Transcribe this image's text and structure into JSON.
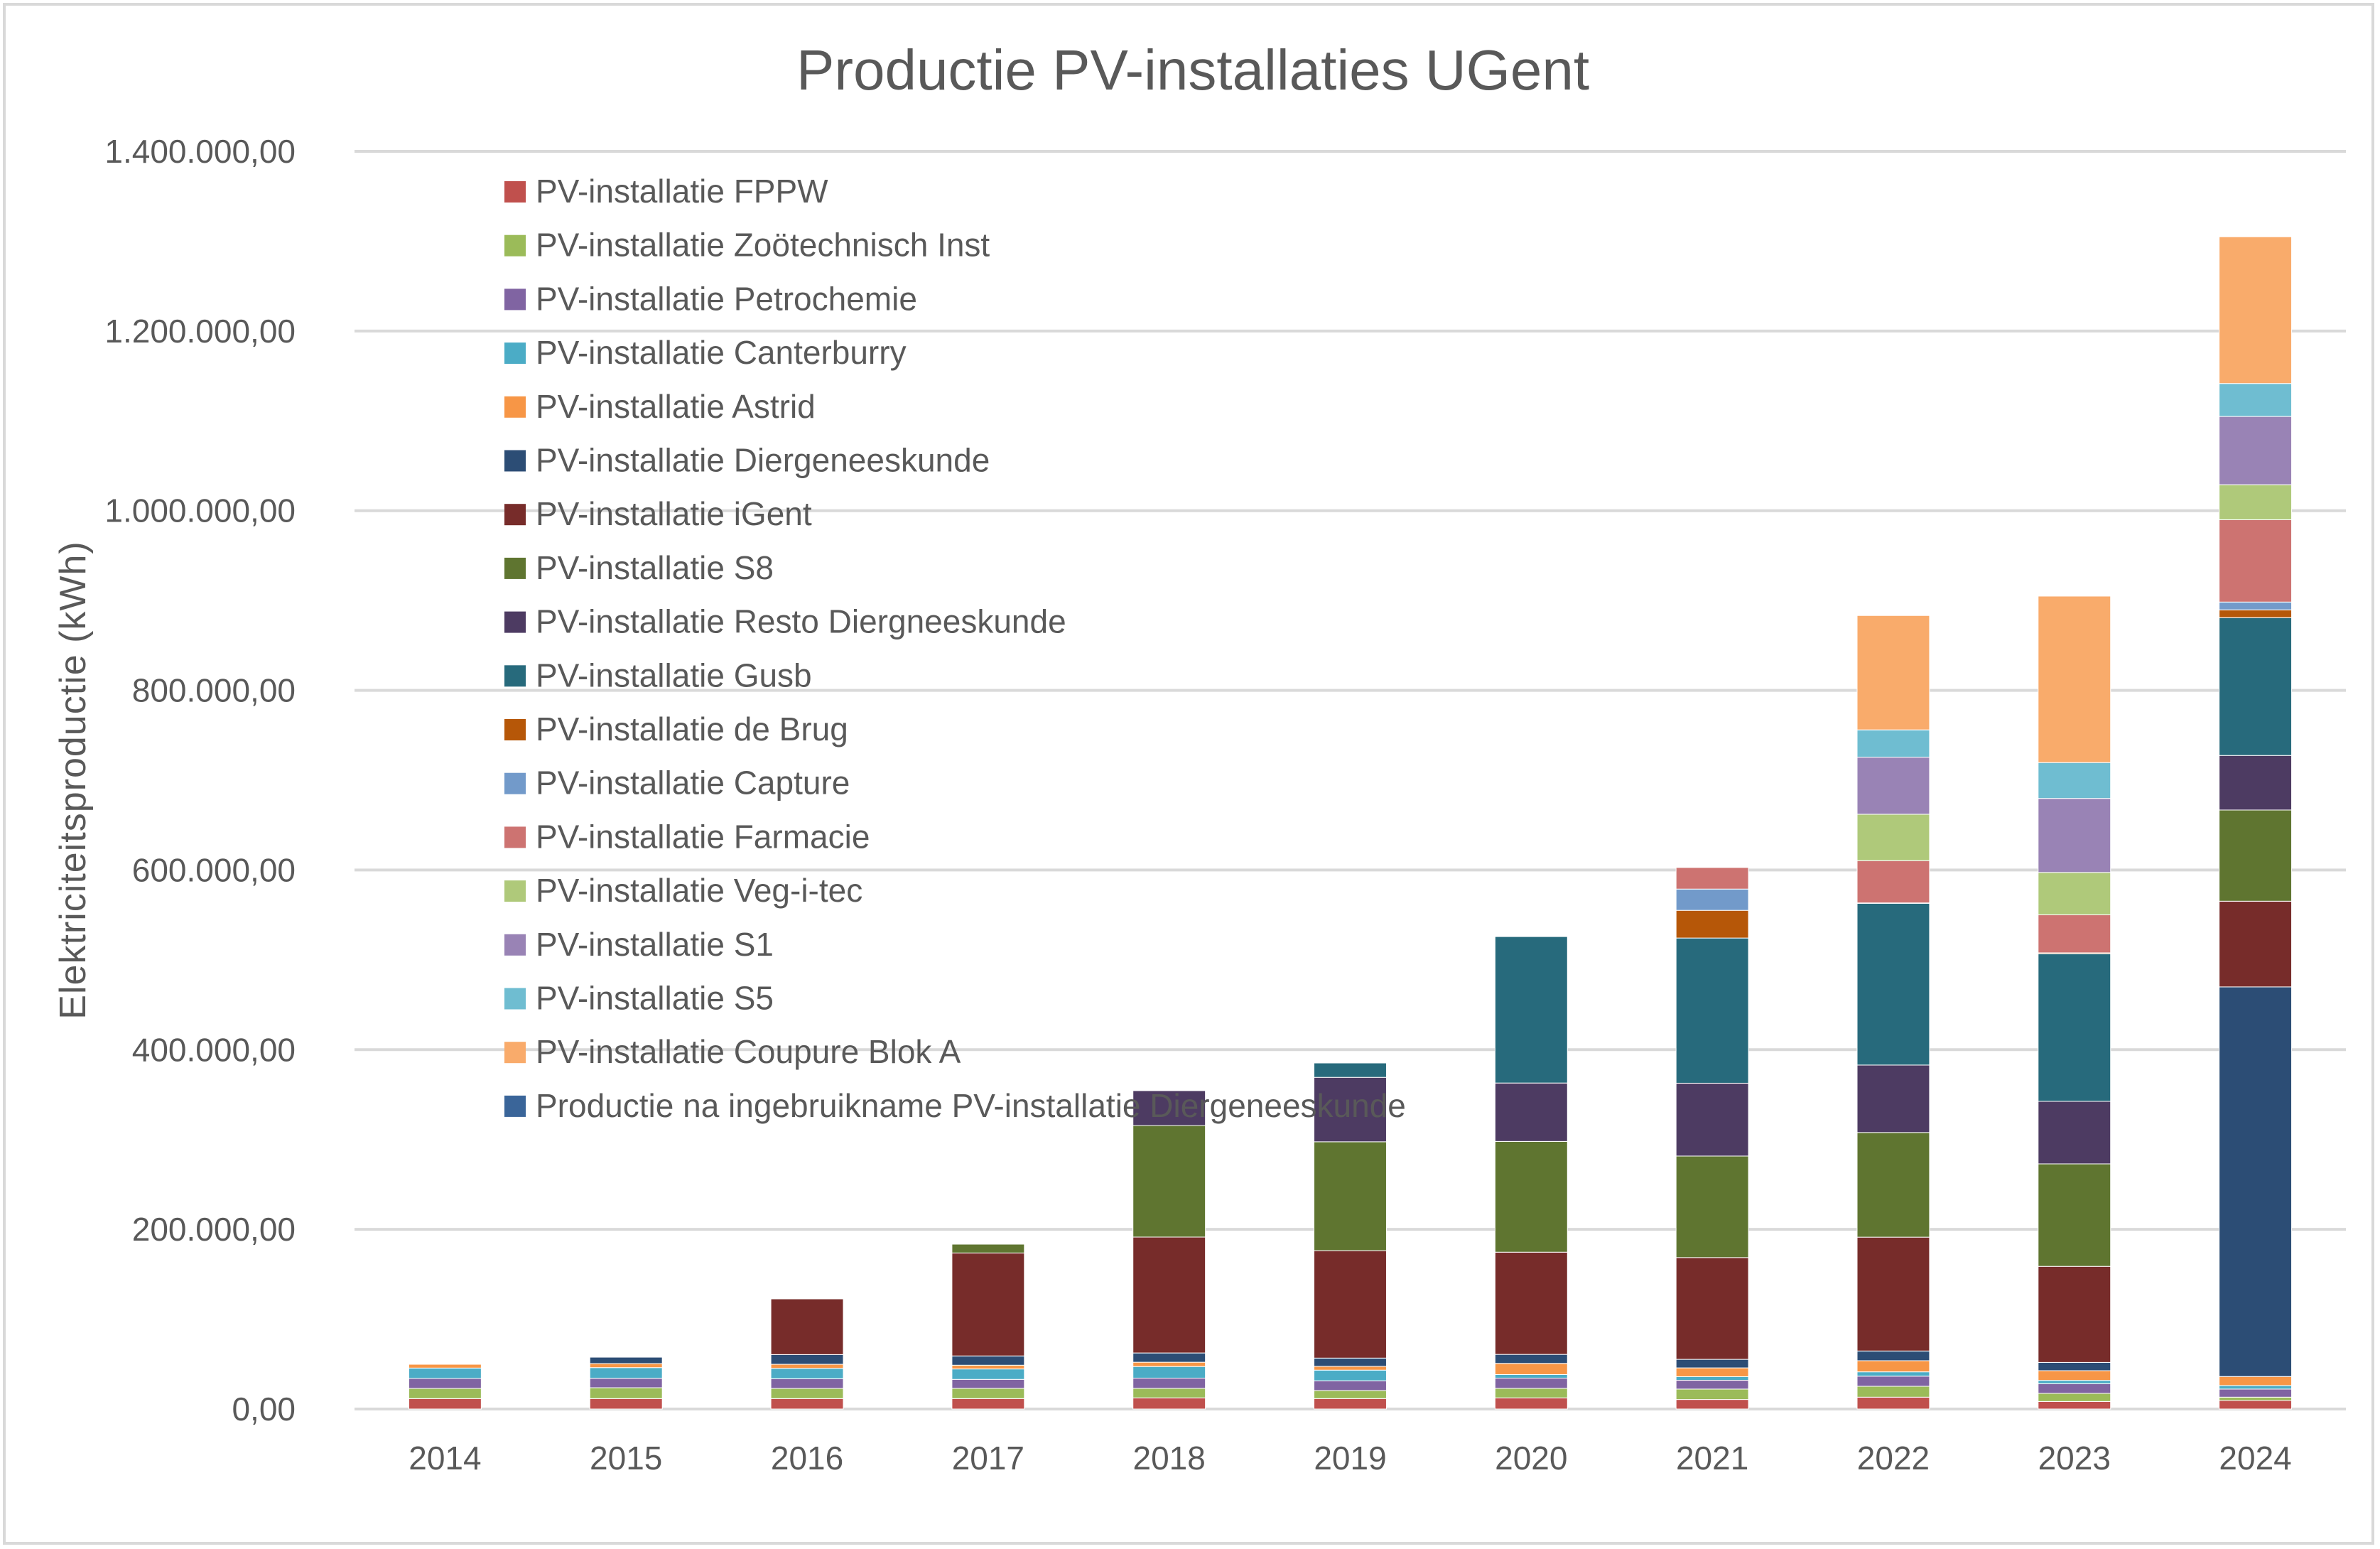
{
  "chart_data": {
    "type": "bar",
    "stacked": true,
    "title": "Productie PV-installaties UGent",
    "xlabel": "",
    "ylabel": "Elektriciteitsproductie (kWh)",
    "ylim": [
      0,
      1400000
    ],
    "yticks": [
      0,
      200000,
      400000,
      600000,
      800000,
      1000000,
      1200000,
      1400000
    ],
    "ytick_labels": [
      "0,00",
      "200.000,00",
      "400.000,00",
      "600.000,00",
      "800.000,00",
      "1.000.000,00",
      "1.200.000,00",
      "1.400.000,00"
    ],
    "grid": true,
    "legend_position": "top-left (inside plot)",
    "categories": [
      "2014",
      "2015",
      "2016",
      "2017",
      "2018",
      "2019",
      "2020",
      "2021",
      "2022",
      "2023",
      "2024"
    ],
    "series": [
      {
        "name": "PV-installatie FPPW",
        "color": "#C0504D",
        "values": [
          11600,
          11600,
          11600,
          11600,
          12400,
          11600,
          12400,
          10600,
          13200,
          8400,
          9500
        ]
      },
      {
        "name": "PV-installatie Zoötechnisch Inst",
        "color": "#9BBB59",
        "values": [
          11300,
          12100,
          11300,
          11400,
          10600,
          9000,
          10600,
          11600,
          12100,
          9000,
          3700
        ]
      },
      {
        "name": "PV-installatie Petrochemie",
        "color": "#8064A2",
        "values": [
          11100,
          10500,
          10800,
          10000,
          11400,
          10800,
          11400,
          9800,
          11300,
          10800,
          9000
        ]
      },
      {
        "name": "PV-installatie Canterburry",
        "color": "#4BACC6",
        "values": [
          11600,
          11900,
          11600,
          11600,
          12900,
          11900,
          4000,
          4000,
          4800,
          3700,
          4000
        ]
      },
      {
        "name": "PV-installatie Astrid",
        "color": "#F79646",
        "values": [
          4200,
          4500,
          4500,
          4200,
          4800,
          4200,
          12400,
          9800,
          12400,
          10800,
          10000
        ]
      },
      {
        "name": "PV-installatie Diergeneeskunde",
        "color": "#2C4D75",
        "values": [
          0,
          7100,
          10800,
          10300,
          10300,
          9200,
          10000,
          9500,
          10800,
          9200,
          433700
        ]
      },
      {
        "name": "PV-installatie iGent",
        "color": "#772C2A",
        "values": [
          0,
          0,
          62000,
          114600,
          129000,
          119600,
          113800,
          113300,
          126700,
          106900,
          95400
        ]
      },
      {
        "name": "PV-installatie S8",
        "color": "#5F7530",
        "values": [
          0,
          0,
          0,
          9800,
          124200,
          121200,
          123300,
          113000,
          116500,
          114100,
          101500
        ]
      },
      {
        "name": "PV-installatie Resto Diergneeskunde",
        "color": "#4D3B62",
        "values": [
          0,
          0,
          0,
          0,
          38800,
          71700,
          65000,
          81100,
          75100,
          69600,
          60700
        ]
      },
      {
        "name": "PV-installatie Gusb",
        "color": "#276A7C",
        "values": [
          0,
          0,
          0,
          0,
          0,
          16000,
          163000,
          161600,
          180000,
          164300,
          153400
        ]
      },
      {
        "name": "PV-installatie de Brug",
        "color": "#B65708",
        "values": [
          0,
          0,
          0,
          0,
          0,
          0,
          0,
          30800,
          500,
          1000,
          8700
        ]
      },
      {
        "name": "PV-installatie Capture",
        "color": "#729ACA",
        "values": [
          0,
          0,
          0,
          0,
          0,
          0,
          0,
          23700,
          0,
          0,
          8700
        ]
      },
      {
        "name": "PV-installatie  Farmacie",
        "color": "#CD7371",
        "values": [
          0,
          0,
          0,
          0,
          0,
          0,
          0,
          24000,
          47000,
          42300,
          91600
        ]
      },
      {
        "name": "PV-installatie Veg-i-tec",
        "color": "#AFC97A",
        "values": [
          0,
          0,
          0,
          0,
          0,
          0,
          0,
          0,
          51700,
          47200,
          39000
        ]
      },
      {
        "name": "PV-installatie S1",
        "color": "#9983B5",
        "values": [
          0,
          0,
          0,
          0,
          0,
          0,
          0,
          0,
          63500,
          82400,
          76000
        ]
      },
      {
        "name": "PV-installatie S5",
        "color": "#6FBDD1",
        "values": [
          0,
          0,
          0,
          0,
          0,
          0,
          0,
          0,
          30400,
          39900,
          36700
        ]
      },
      {
        "name": "PV-installatie Coupure Blok A",
        "color": "#F9AB6B",
        "values": [
          0,
          0,
          0,
          0,
          0,
          0,
          0,
          0,
          127300,
          185300,
          163300
        ]
      },
      {
        "name": "Productie na ingebruikname PV-installatie Diergeneeskunde",
        "color": "#3A6599",
        "values": [
          0,
          0,
          0,
          0,
          0,
          0,
          0,
          0,
          0,
          0,
          0
        ]
      }
    ]
  }
}
